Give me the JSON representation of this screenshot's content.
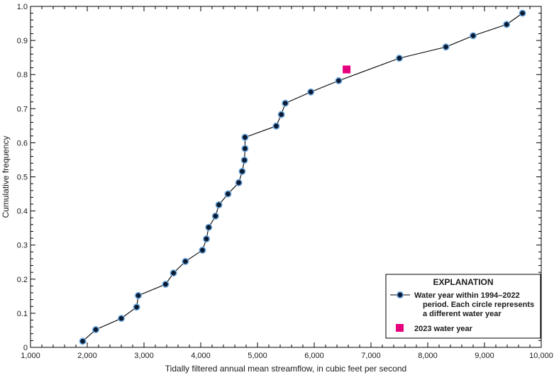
{
  "chart_data": {
    "type": "scatter",
    "xlabel": "Tidally filtered annual mean streamflow, in cubic feet per second",
    "ylabel": "Cumulative frequency",
    "xlim": [
      1000,
      10000
    ],
    "ylim": [
      0,
      1.0
    ],
    "x_ticks": [
      1000,
      2000,
      3000,
      4000,
      5000,
      6000,
      7000,
      8000,
      9000,
      10000
    ],
    "x_tick_labels": [
      "1,000",
      "2,000",
      "3,000",
      "4,000",
      "5,000",
      "6,000",
      "7,000",
      "8,000",
      "9,000",
      "10,000"
    ],
    "y_ticks": [
      0,
      0.1,
      0.2,
      0.3,
      0.4,
      0.5,
      0.6,
      0.7,
      0.8,
      0.9,
      1.0
    ],
    "y_tick_labels": [
      "0",
      "0.1",
      "0.2",
      "0.3",
      "0.4",
      "0.5",
      "0.6",
      "0.7",
      "0.8",
      "0.9",
      "1.0"
    ],
    "grid": false,
    "series": [
      {
        "name": "Water year within 1994–2022 period. Each circle represents a different water year",
        "marker": "circle",
        "line": true,
        "color": "#000000",
        "marker_fill": "#0a1a33",
        "marker_edge": "#6fa8dc",
        "points": [
          {
            "x": 1920,
            "y": 0.018
          },
          {
            "x": 2150,
            "y": 0.052
          },
          {
            "x": 2600,
            "y": 0.085
          },
          {
            "x": 2870,
            "y": 0.118
          },
          {
            "x": 2900,
            "y": 0.152
          },
          {
            "x": 3380,
            "y": 0.185
          },
          {
            "x": 3520,
            "y": 0.218
          },
          {
            "x": 3730,
            "y": 0.252
          },
          {
            "x": 4030,
            "y": 0.285
          },
          {
            "x": 4100,
            "y": 0.318
          },
          {
            "x": 4140,
            "y": 0.352
          },
          {
            "x": 4260,
            "y": 0.385
          },
          {
            "x": 4320,
            "y": 0.418
          },
          {
            "x": 4480,
            "y": 0.45
          },
          {
            "x": 4670,
            "y": 0.483
          },
          {
            "x": 4730,
            "y": 0.516
          },
          {
            "x": 4770,
            "y": 0.549
          },
          {
            "x": 4780,
            "y": 0.583
          },
          {
            "x": 4780,
            "y": 0.616
          },
          {
            "x": 5330,
            "y": 0.649
          },
          {
            "x": 5420,
            "y": 0.683
          },
          {
            "x": 5490,
            "y": 0.716
          },
          {
            "x": 5940,
            "y": 0.749
          },
          {
            "x": 6430,
            "y": 0.782
          },
          {
            "x": 7500,
            "y": 0.848
          },
          {
            "x": 8320,
            "y": 0.881
          },
          {
            "x": 8800,
            "y": 0.914
          },
          {
            "x": 9390,
            "y": 0.947
          },
          {
            "x": 9670,
            "y": 0.98
          }
        ]
      },
      {
        "name": "2023 water year",
        "marker": "square",
        "line": false,
        "color": "#e6007e",
        "points": [
          {
            "x": 6570,
            "y": 0.815
          }
        ]
      }
    ],
    "legend": {
      "title": "EXPLANATION",
      "placement": "bottom-right",
      "entries": [
        {
          "lines": [
            "Water year within 1994–2022",
            "period. Each circle represents",
            "a different water year"
          ]
        },
        {
          "lines": [
            "2023 water year"
          ]
        }
      ]
    }
  }
}
